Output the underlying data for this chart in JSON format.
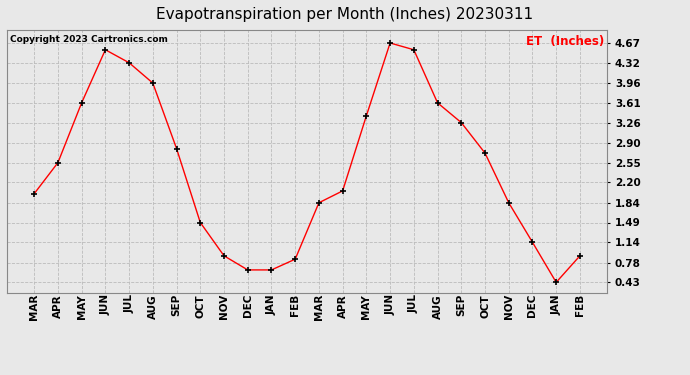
{
  "title": "Evapotranspiration per Month (Inches) 20230311",
  "legend_label": "ET  (Inches)",
  "copyright": "Copyright 2023 Cartronics.com",
  "months": [
    "MAR",
    "APR",
    "MAY",
    "JUN",
    "JUL",
    "AUG",
    "SEP",
    "OCT",
    "NOV",
    "DEC",
    "JAN",
    "FEB",
    "MAR",
    "APR",
    "MAY",
    "JUN",
    "JUL",
    "AUG",
    "SEP",
    "OCT",
    "NOV",
    "DEC",
    "JAN",
    "FEB"
  ],
  "values": [
    2.0,
    2.55,
    3.61,
    4.55,
    4.32,
    3.96,
    2.8,
    1.49,
    0.9,
    0.65,
    0.65,
    0.84,
    1.84,
    2.05,
    3.38,
    4.67,
    4.55,
    3.61,
    3.26,
    2.72,
    1.84,
    1.14,
    0.43,
    0.9
  ],
  "yticks": [
    0.43,
    0.78,
    1.14,
    1.49,
    1.84,
    2.2,
    2.55,
    2.9,
    3.26,
    3.61,
    3.96,
    4.32,
    4.67
  ],
  "line_color": "red",
  "marker_color": "black",
  "bg_color": "#e8e8e8",
  "grid_color": "#bbbbbb",
  "title_fontsize": 11,
  "tick_fontsize": 7.5,
  "legend_color": "red"
}
